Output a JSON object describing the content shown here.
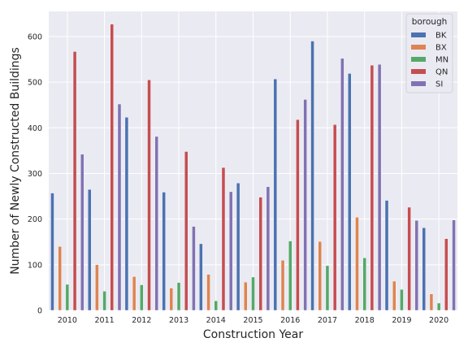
{
  "chart_data": {
    "type": "bar",
    "xlabel": "Construction Year",
    "ylabel": "Number of Newly Constructed Buildings",
    "categories": [
      "2010",
      "2011",
      "2012",
      "2013",
      "2014",
      "2015",
      "2016",
      "2017",
      "2018",
      "2019",
      "2020"
    ],
    "ylim": [
      0,
      655
    ],
    "yticks": [
      0,
      100,
      200,
      300,
      400,
      500,
      600
    ],
    "grid": true,
    "legend": {
      "title": "borough",
      "placement": "top-right"
    },
    "series": [
      {
        "name": "BK",
        "color": "#4c72b0",
        "values": [
          257,
          265,
          423,
          259,
          146,
          279,
          507,
          590,
          519,
          241,
          181
        ]
      },
      {
        "name": "BX",
        "color": "#dd8452",
        "values": [
          140,
          100,
          74,
          49,
          79,
          62,
          110,
          151,
          204,
          64,
          36
        ]
      },
      {
        "name": "MN",
        "color": "#55a868",
        "values": [
          57,
          42,
          56,
          61,
          21,
          73,
          152,
          98,
          115,
          46,
          16
        ]
      },
      {
        "name": "QN",
        "color": "#c44e52",
        "values": [
          567,
          627,
          505,
          348,
          313,
          248,
          418,
          407,
          537,
          226,
          157
        ]
      },
      {
        "name": "SI",
        "color": "#8172b3",
        "values": [
          342,
          452,
          381,
          184,
          260,
          271,
          462,
          552,
          539,
          197,
          198
        ]
      }
    ]
  }
}
